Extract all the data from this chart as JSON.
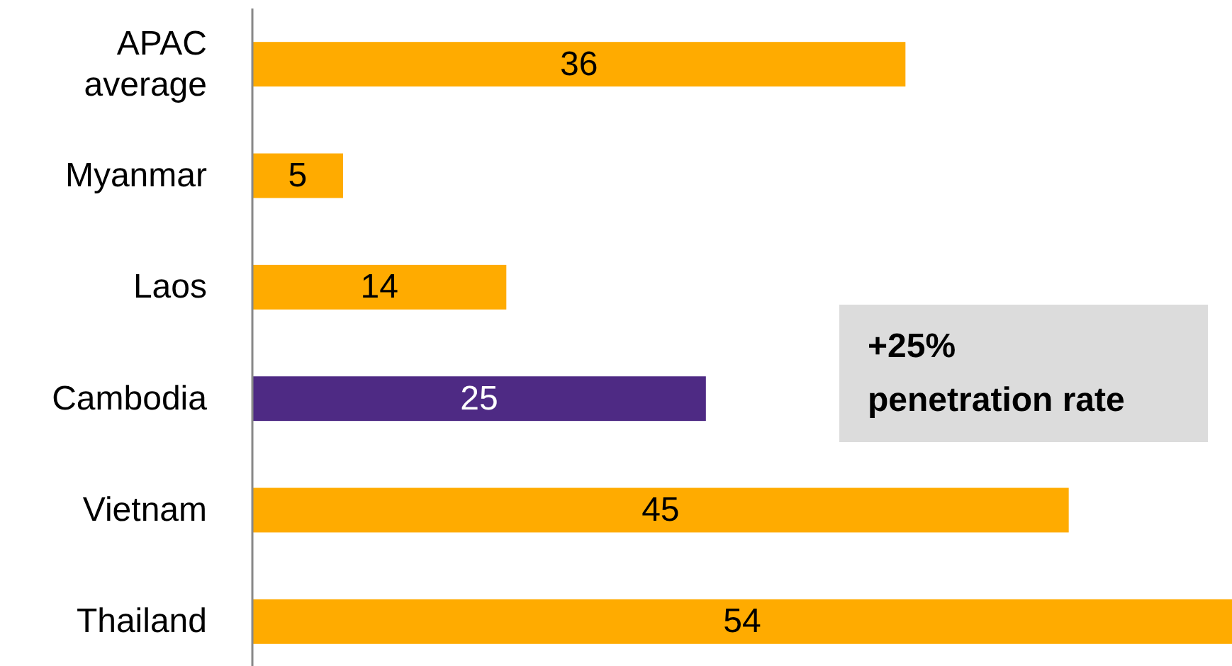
{
  "chart_data": {
    "type": "bar",
    "orientation": "horizontal",
    "categories": [
      "APAC average",
      "Myanmar",
      "Laos",
      "Cambodia",
      "Vietnam",
      "Thailand"
    ],
    "values": [
      36,
      5,
      14,
      25,
      45,
      54
    ],
    "colors": [
      "#ffab00",
      "#ffab00",
      "#ffab00",
      "#4e2a84",
      "#ffab00",
      "#ffab00"
    ],
    "data_labels": true,
    "tick_labels": "y",
    "annotations": [
      "+25% penetration rate"
    ]
  }
}
